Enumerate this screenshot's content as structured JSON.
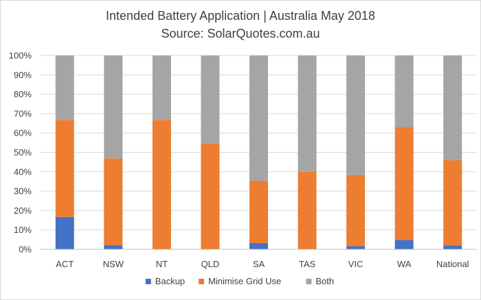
{
  "chart_data": {
    "type": "bar",
    "stacked": true,
    "title": "Intended Battery Application | Australia May 2018",
    "subtitle": "Source: SolarQuotes.com.au",
    "xlabel": "",
    "ylabel": "",
    "ylim": [
      0,
      100
    ],
    "y_ticks": [
      "0%",
      "10%",
      "20%",
      "30%",
      "40%",
      "50%",
      "60%",
      "70%",
      "80%",
      "90%",
      "100%"
    ],
    "categories": [
      "ACT",
      "NSW",
      "NT",
      "QLD",
      "SA",
      "TAS",
      "VIC",
      "WA",
      "National"
    ],
    "series": [
      {
        "name": "Backup",
        "color": "#4472c4",
        "values": [
          16.7,
          2.1,
          0,
          0,
          3.2,
          0,
          1.6,
          4.8,
          2.0
        ]
      },
      {
        "name": "Minimise Grid Use",
        "color": "#ed7d31",
        "values": [
          50.0,
          44.8,
          66.7,
          54.5,
          32.2,
          40.0,
          36.7,
          58.3,
          44.0
        ]
      },
      {
        "name": "Both",
        "color": "#a5a5a5",
        "values": [
          33.3,
          53.1,
          33.3,
          45.5,
          64.6,
          60.0,
          61.7,
          36.9,
          54.0
        ]
      }
    ],
    "grid": true,
    "legend_position": "bottom"
  }
}
